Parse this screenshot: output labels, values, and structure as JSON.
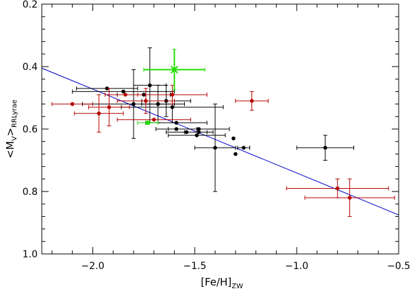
{
  "chart_data": {
    "type": "scatter",
    "title": "",
    "xlabel": {
      "main": "[Fe/H]",
      "sub": "ZW"
    },
    "ylabel": {
      "prefix": "<M",
      "mid": "V",
      "close": ">",
      "sub": "RRLyrae"
    },
    "xlim": [
      -2.25,
      -0.5
    ],
    "ylim": [
      0.2,
      1.0
    ],
    "y_inverted": true,
    "x_ticks": [
      -2.0,
      -1.5,
      -1.0,
      -0.5
    ],
    "x_tick_labels": [
      "−2.0",
      "−1.5",
      "−1.0",
      "−0.5"
    ],
    "y_ticks": [
      0.2,
      0.4,
      0.6,
      0.8,
      1.0
    ],
    "y_tick_labels": [
      "0.2",
      "0.4",
      "0.6",
      "0.8",
      "1.0"
    ],
    "x_minor_step": 0.1,
    "y_minor_step": 0.04,
    "fit_line": {
      "color": "#0000cc",
      "x": [
        -2.25,
        -0.5
      ],
      "y": [
        0.405,
        0.875
      ]
    },
    "series": [
      {
        "name": "black",
        "color": "#000000",
        "marker": "circle",
        "points": [
          {
            "x": -1.93,
            "y": 0.47,
            "xerr": 0.15,
            "yerr": 0.0
          },
          {
            "x": -1.85,
            "y": 0.48,
            "xerr": 0.25,
            "yerr": 0.0
          },
          {
            "x": -1.8,
            "y": 0.52,
            "xerr": 0.25,
            "yerr": 0.11
          },
          {
            "x": -1.75,
            "y": 0.49,
            "xerr": 0.13,
            "yerr": 0.0
          },
          {
            "x": -1.72,
            "y": 0.46,
            "xerr": 0.08,
            "yerr": 0.12
          },
          {
            "x": -1.68,
            "y": 0.52,
            "xerr": 0.08,
            "yerr": 0.06
          },
          {
            "x": -1.64,
            "y": 0.51,
            "xerr": 0.12,
            "yerr": 0.05
          },
          {
            "x": -1.61,
            "y": 0.53,
            "xerr": 0.25,
            "yerr": 0.05
          },
          {
            "x": -1.59,
            "y": 0.58,
            "xerr": 0.15,
            "yerr": 0.0
          },
          {
            "x": -1.59,
            "y": 0.6,
            "xerr": 0.1,
            "yerr": 0.0
          },
          {
            "x": -1.54,
            "y": 0.61,
            "xerr": 0.1,
            "yerr": 0.0
          },
          {
            "x": -1.49,
            "y": 0.62,
            "xerr": 0.14,
            "yerr": 0.0
          },
          {
            "x": -1.48,
            "y": 0.6,
            "xerr": 0.15,
            "yerr": 0.0
          },
          {
            "x": -1.48,
            "y": 0.61,
            "xerr": 0.07,
            "yerr": 0.0
          },
          {
            "x": -1.4,
            "y": 0.66,
            "xerr": 0.1,
            "yerr": 0.14
          },
          {
            "x": -1.31,
            "y": 0.63,
            "xerr": 0.0,
            "yerr": 0.0
          },
          {
            "x": -1.3,
            "y": 0.68,
            "xerr": 0.0,
            "yerr": 0.0
          },
          {
            "x": -1.26,
            "y": 0.66,
            "xerr": 0.03,
            "yerr": 0.0
          },
          {
            "x": -0.86,
            "y": 0.66,
            "xerr": 0.14,
            "yerr": 0.04
          }
        ]
      },
      {
        "name": "red",
        "color": "#b40000",
        "marker": "circle",
        "points": [
          {
            "x": -2.1,
            "y": 0.52,
            "xerr": 0.1,
            "yerr": 0.0
          },
          {
            "x": -1.97,
            "y": 0.55,
            "xerr": 0.12,
            "yerr": 0.06
          },
          {
            "x": -1.92,
            "y": 0.53,
            "xerr": 0.1,
            "yerr": 0.06
          },
          {
            "x": -1.84,
            "y": 0.49,
            "xerr": 0.1,
            "yerr": 0.0
          },
          {
            "x": -1.74,
            "y": 0.51,
            "xerr": 0.14,
            "yerr": 0.04
          },
          {
            "x": -1.7,
            "y": 0.57,
            "xerr": 0.18,
            "yerr": 0.0
          },
          {
            "x": -1.61,
            "y": 0.49,
            "xerr": 0.17,
            "yerr": 0.03
          },
          {
            "x": -1.22,
            "y": 0.51,
            "xerr": 0.08,
            "yerr": 0.03
          },
          {
            "x": -0.8,
            "y": 0.79,
            "xerr": 0.25,
            "yerr": 0.03
          },
          {
            "x": -0.74,
            "y": 0.82,
            "xerr": 0.22,
            "yerr": 0.06
          }
        ]
      },
      {
        "name": "green",
        "color": "#22dd00",
        "marker": "square",
        "points": [
          {
            "x": -1.73,
            "y": 0.58,
            "xerr": 0.05,
            "yerr": 0.0
          }
        ]
      },
      {
        "name": "green-star",
        "color": "#22dd00",
        "marker": "asterisk",
        "points": [
          {
            "x": -1.6,
            "y": 0.41,
            "xerr": 0.15,
            "yerr": 0.065
          }
        ]
      }
    ]
  }
}
